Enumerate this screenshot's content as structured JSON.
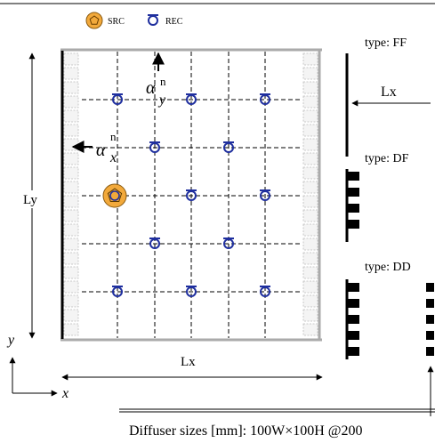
{
  "legend": {
    "src_label": "SRC",
    "rec_label": "REC",
    "src_color": "#F2A93B",
    "rec_color": "#1F2F9E"
  },
  "room": {
    "width_label": "Lx",
    "height_label": "Ly",
    "alpha_x": {
      "symbol": "α",
      "sup": "n",
      "sub": "x"
    },
    "alpha_y": {
      "symbol": "α",
      "sup": "n",
      "sub": "y"
    }
  },
  "axes": {
    "x_label": "x",
    "y_label": "y"
  },
  "types": [
    {
      "label": "type: FF",
      "width_label": "Lx"
    },
    {
      "label": "type: DF"
    },
    {
      "label": "type: DD"
    }
  ],
  "footer": {
    "diffuser_text": "Diffuser sizes [mm]: 100W×100H @200"
  }
}
